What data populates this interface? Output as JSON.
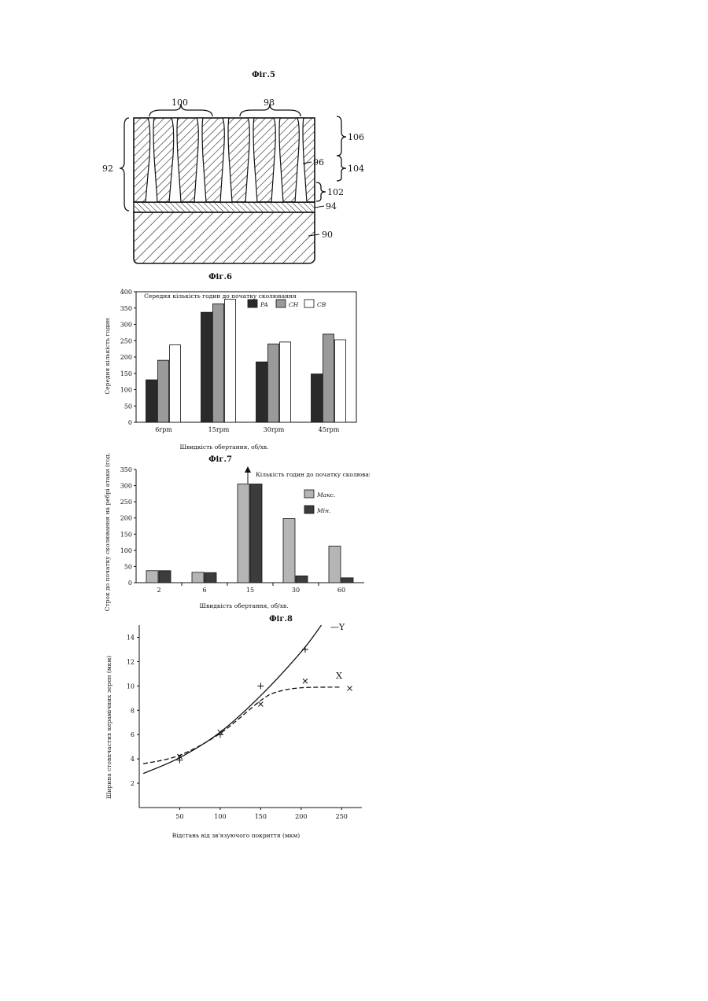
{
  "figures": {
    "fig5": {
      "title": "Фіг.5",
      "labels": {
        "l100": "100",
        "l98": "98",
        "l92": "92",
        "l96": "96",
        "l106": "106",
        "l104": "104",
        "l102": "102",
        "l94": "94",
        "l90": "90"
      }
    },
    "fig6": {
      "title": "Фіг.6"
    },
    "fig7": {
      "title": "Фіг.7"
    },
    "fig8": {
      "title": "Фіг.8"
    }
  },
  "chart_data": [
    {
      "type": "bar",
      "title": "Середня кількість годин до початку сколювання",
      "xlabel": "Швидкість обертання, об/хв.",
      "ylabel": "Середня кількість годин",
      "categories": [
        "6rpm",
        "15rpm",
        "30rpm",
        "45rpm"
      ],
      "ylim": [
        0,
        400
      ],
      "yticks": [
        0,
        50,
        100,
        150,
        200,
        250,
        300,
        350,
        400
      ],
      "series": [
        {
          "name": "PA",
          "color": "#2a2a2a",
          "values": [
            130,
            337,
            185,
            148
          ]
        },
        {
          "name": "CH",
          "color": "#9a9a9a",
          "values": [
            190,
            363,
            240,
            270
          ]
        },
        {
          "name": "CB",
          "color": "#ffffff",
          "values": [
            237,
            377,
            246,
            253
          ]
        }
      ],
      "legend": "top"
    },
    {
      "type": "bar",
      "title": "Кількість годин до початку сколювання",
      "xlabel": "Швидкість обертання, об/хв.",
      "ylabel": "Строк до початку сколювання на ребрі атаки (год.)",
      "categories": [
        "2",
        "6",
        "15",
        "30",
        "60"
      ],
      "ylim": [
        0,
        350
      ],
      "yticks": [
        0,
        50,
        100,
        150,
        200,
        250,
        300,
        350
      ],
      "series": [
        {
          "name": "Макс.",
          "color": "#b5b5b5",
          "values": [
            37,
            32,
            305,
            198,
            113
          ]
        },
        {
          "name": "Мін.",
          "color": "#3c3c3c",
          "values": [
            37,
            31,
            305,
            21,
            15
          ]
        }
      ],
      "legend": "top-right"
    },
    {
      "type": "line",
      "xlabel": "Відстань від зв'язуючого покриття (мкм)",
      "ylabel": "Ширина стовпчастих керамічних зерен (мкм)",
      "xlim": [
        0,
        275
      ],
      "ylim": [
        0,
        15
      ],
      "xticks": [
        50,
        100,
        150,
        200,
        250
      ],
      "yticks": [
        2,
        4,
        6,
        8,
        10,
        12,
        14
      ],
      "series": [
        {
          "name": "Y",
          "style": "solid",
          "marker": "+",
          "x": [
            5,
            50,
            100,
            150,
            200,
            225
          ],
          "y": [
            2.8,
            4.1,
            6.2,
            9.2,
            12.8,
            15.0
          ],
          "points_x": [
            50,
            100,
            150,
            205
          ],
          "points_y": [
            3.9,
            6.0,
            10.0,
            13.0
          ]
        },
        {
          "name": "X",
          "style": "dashed",
          "marker": "x",
          "x": [
            5,
            50,
            100,
            150,
            170,
            200,
            250
          ],
          "y": [
            3.6,
            4.3,
            6.1,
            8.8,
            9.5,
            9.85,
            9.9
          ],
          "points_x": [
            50,
            100,
            150,
            205,
            260
          ],
          "points_y": [
            4.2,
            6.2,
            8.5,
            10.4,
            9.8
          ]
        }
      ]
    }
  ]
}
